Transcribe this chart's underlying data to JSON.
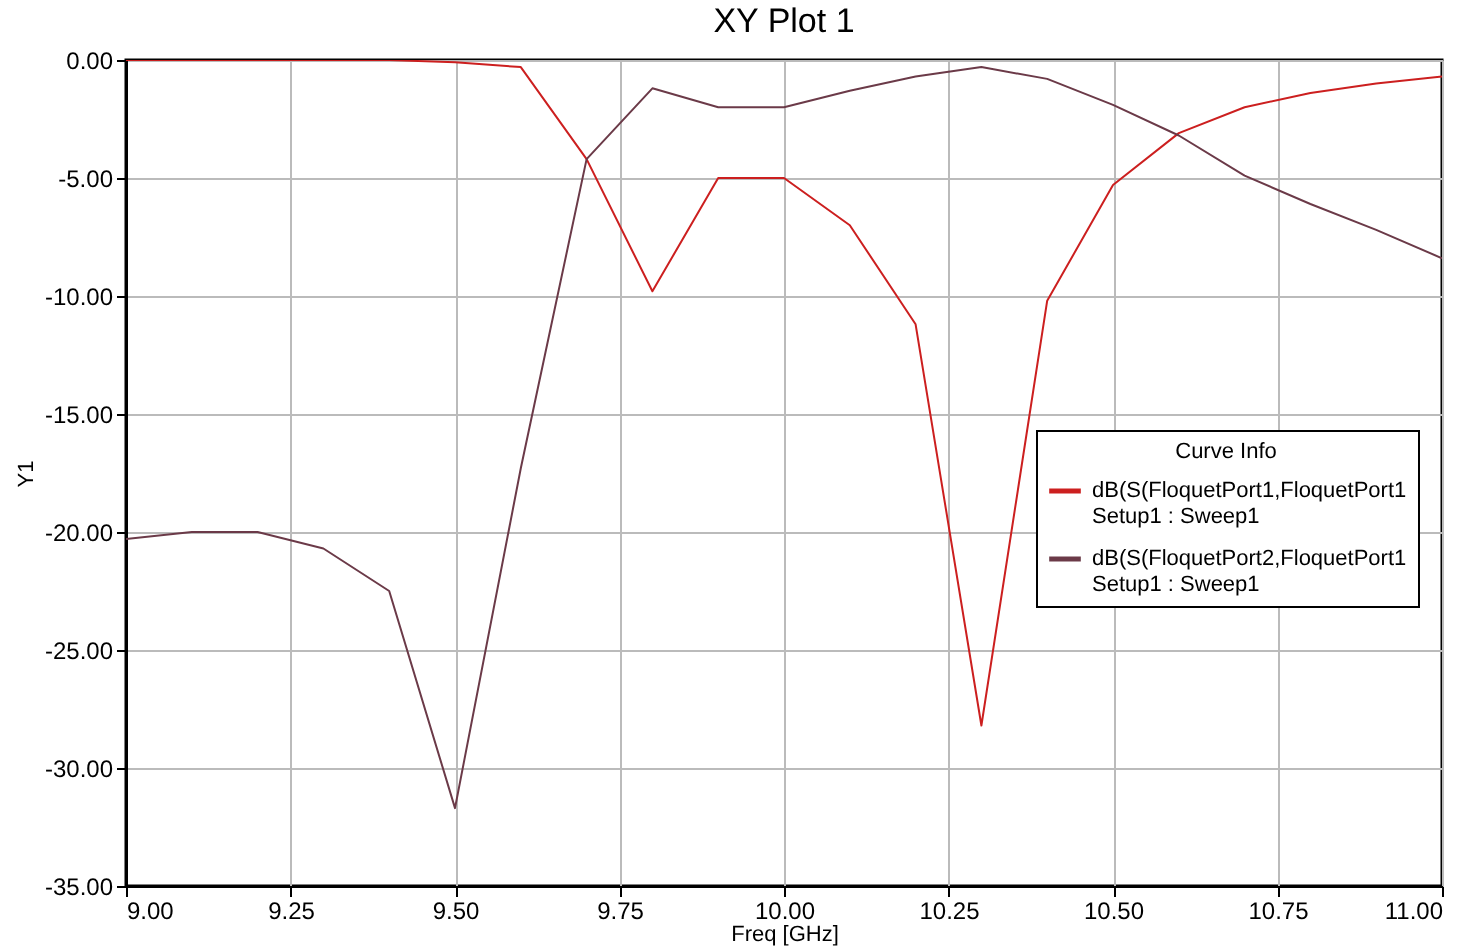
{
  "chart_data": {
    "type": "line",
    "title": "XY Plot 1",
    "xlabel": "Freq [GHz]",
    "ylabel": "Y1",
    "legend_title": "Curve Info",
    "legend": "right",
    "grid": true,
    "line_style": "solid",
    "marker": "none",
    "x": [
      9.0,
      9.1,
      9.2,
      9.3,
      9.4,
      9.5,
      9.6,
      9.7,
      9.8,
      9.9,
      10.0,
      10.1,
      10.2,
      10.3,
      10.4,
      10.5,
      10.6,
      10.7,
      10.8,
      10.9,
      11.0
    ],
    "xlim": [
      9,
      11
    ],
    "xticks": [
      {
        "value": 9,
        "label": "9.00"
      },
      {
        "value": 9.25,
        "label": "9.25"
      },
      {
        "value": 9.5,
        "label": "9.50"
      },
      {
        "value": 9.75,
        "label": "9.75"
      },
      {
        "value": 10,
        "label": "10.00"
      },
      {
        "value": 10.25,
        "label": "10.25"
      },
      {
        "value": 10.5,
        "label": "10.50"
      },
      {
        "value": 10.75,
        "label": "10.75"
      },
      {
        "value": 11,
        "label": "11.00"
      }
    ],
    "ylim": [
      -35,
      0
    ],
    "yticks": [
      {
        "value": -35,
        "label": "-35.00"
      },
      {
        "value": -30,
        "label": "-30.00"
      },
      {
        "value": -25,
        "label": "-25.00"
      },
      {
        "value": -20,
        "label": "-20.00"
      },
      {
        "value": -15,
        "label": "-15.00"
      },
      {
        "value": -10,
        "label": "-10.00"
      },
      {
        "value": -5,
        "label": "-5.00"
      },
      {
        "value": 0,
        "label": "0.00"
      }
    ],
    "series": [
      {
        "name": "dB(S(FloquetPort1,FloquetPort1\nSetup1 : Sweep1",
        "color": "#cc1f1f",
        "values": [
          0,
          0,
          0,
          0,
          0,
          -0.1,
          -0.3,
          -4.2,
          -9.8,
          -5.0,
          -5.0,
          -7.0,
          -11.2,
          -28.2,
          -10.2,
          -5.3,
          -3.1,
          -2.0,
          -1.4,
          -1.0,
          -0.7
        ]
      },
      {
        "name": "dB(S(FloquetPort2,FloquetPort1\nSetup1 : Sweep1",
        "color": "#6b3a48",
        "values": [
          -20.3,
          -20.0,
          -20.0,
          -20.7,
          -22.5,
          -31.7,
          -17.3,
          -4.2,
          -1.2,
          -2.0,
          -2.0,
          -1.3,
          -0.7,
          -0.3,
          -0.8,
          -1.9,
          -3.2,
          -4.9,
          -6.1,
          -7.2,
          -8.4
        ]
      }
    ]
  }
}
